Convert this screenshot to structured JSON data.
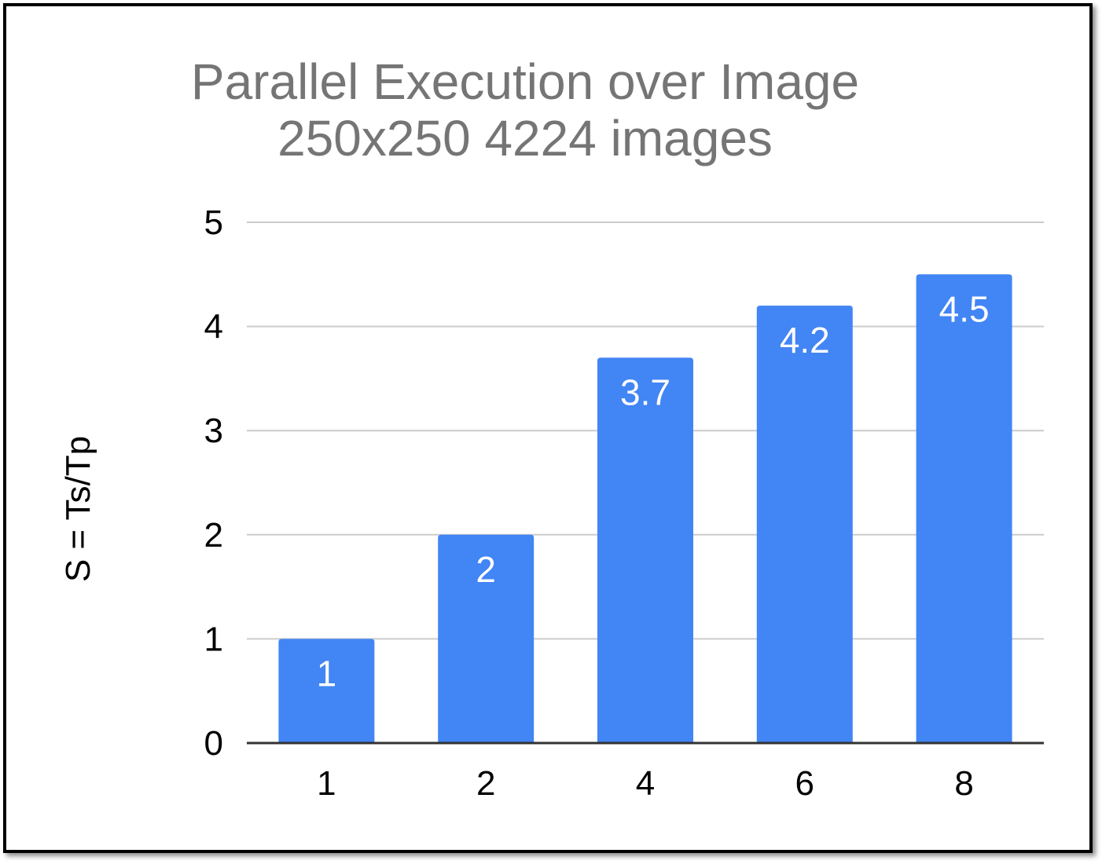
{
  "chart_data": {
    "type": "bar",
    "title_lines": [
      "Parallel Execution over Image",
      "250x250 4224 images"
    ],
    "xlabel": "",
    "ylabel": "S = Ts/Tp",
    "categories": [
      "1",
      "2",
      "4",
      "6",
      "8"
    ],
    "values": [
      1,
      2,
      3.7,
      4.2,
      4.5
    ],
    "data_labels": [
      "1",
      "2",
      "3.7",
      "4.2",
      "4.5"
    ],
    "yticks": [
      "0",
      "1",
      "2",
      "3",
      "4",
      "5"
    ],
    "ylim": [
      0,
      5
    ],
    "grid": true,
    "legend": "none",
    "colors": {
      "bar": "#4285f4",
      "bar_label": "#ffffff",
      "grid": "#cccccc",
      "axis": "#333333",
      "title": "#757575",
      "text": "#000000"
    }
  }
}
